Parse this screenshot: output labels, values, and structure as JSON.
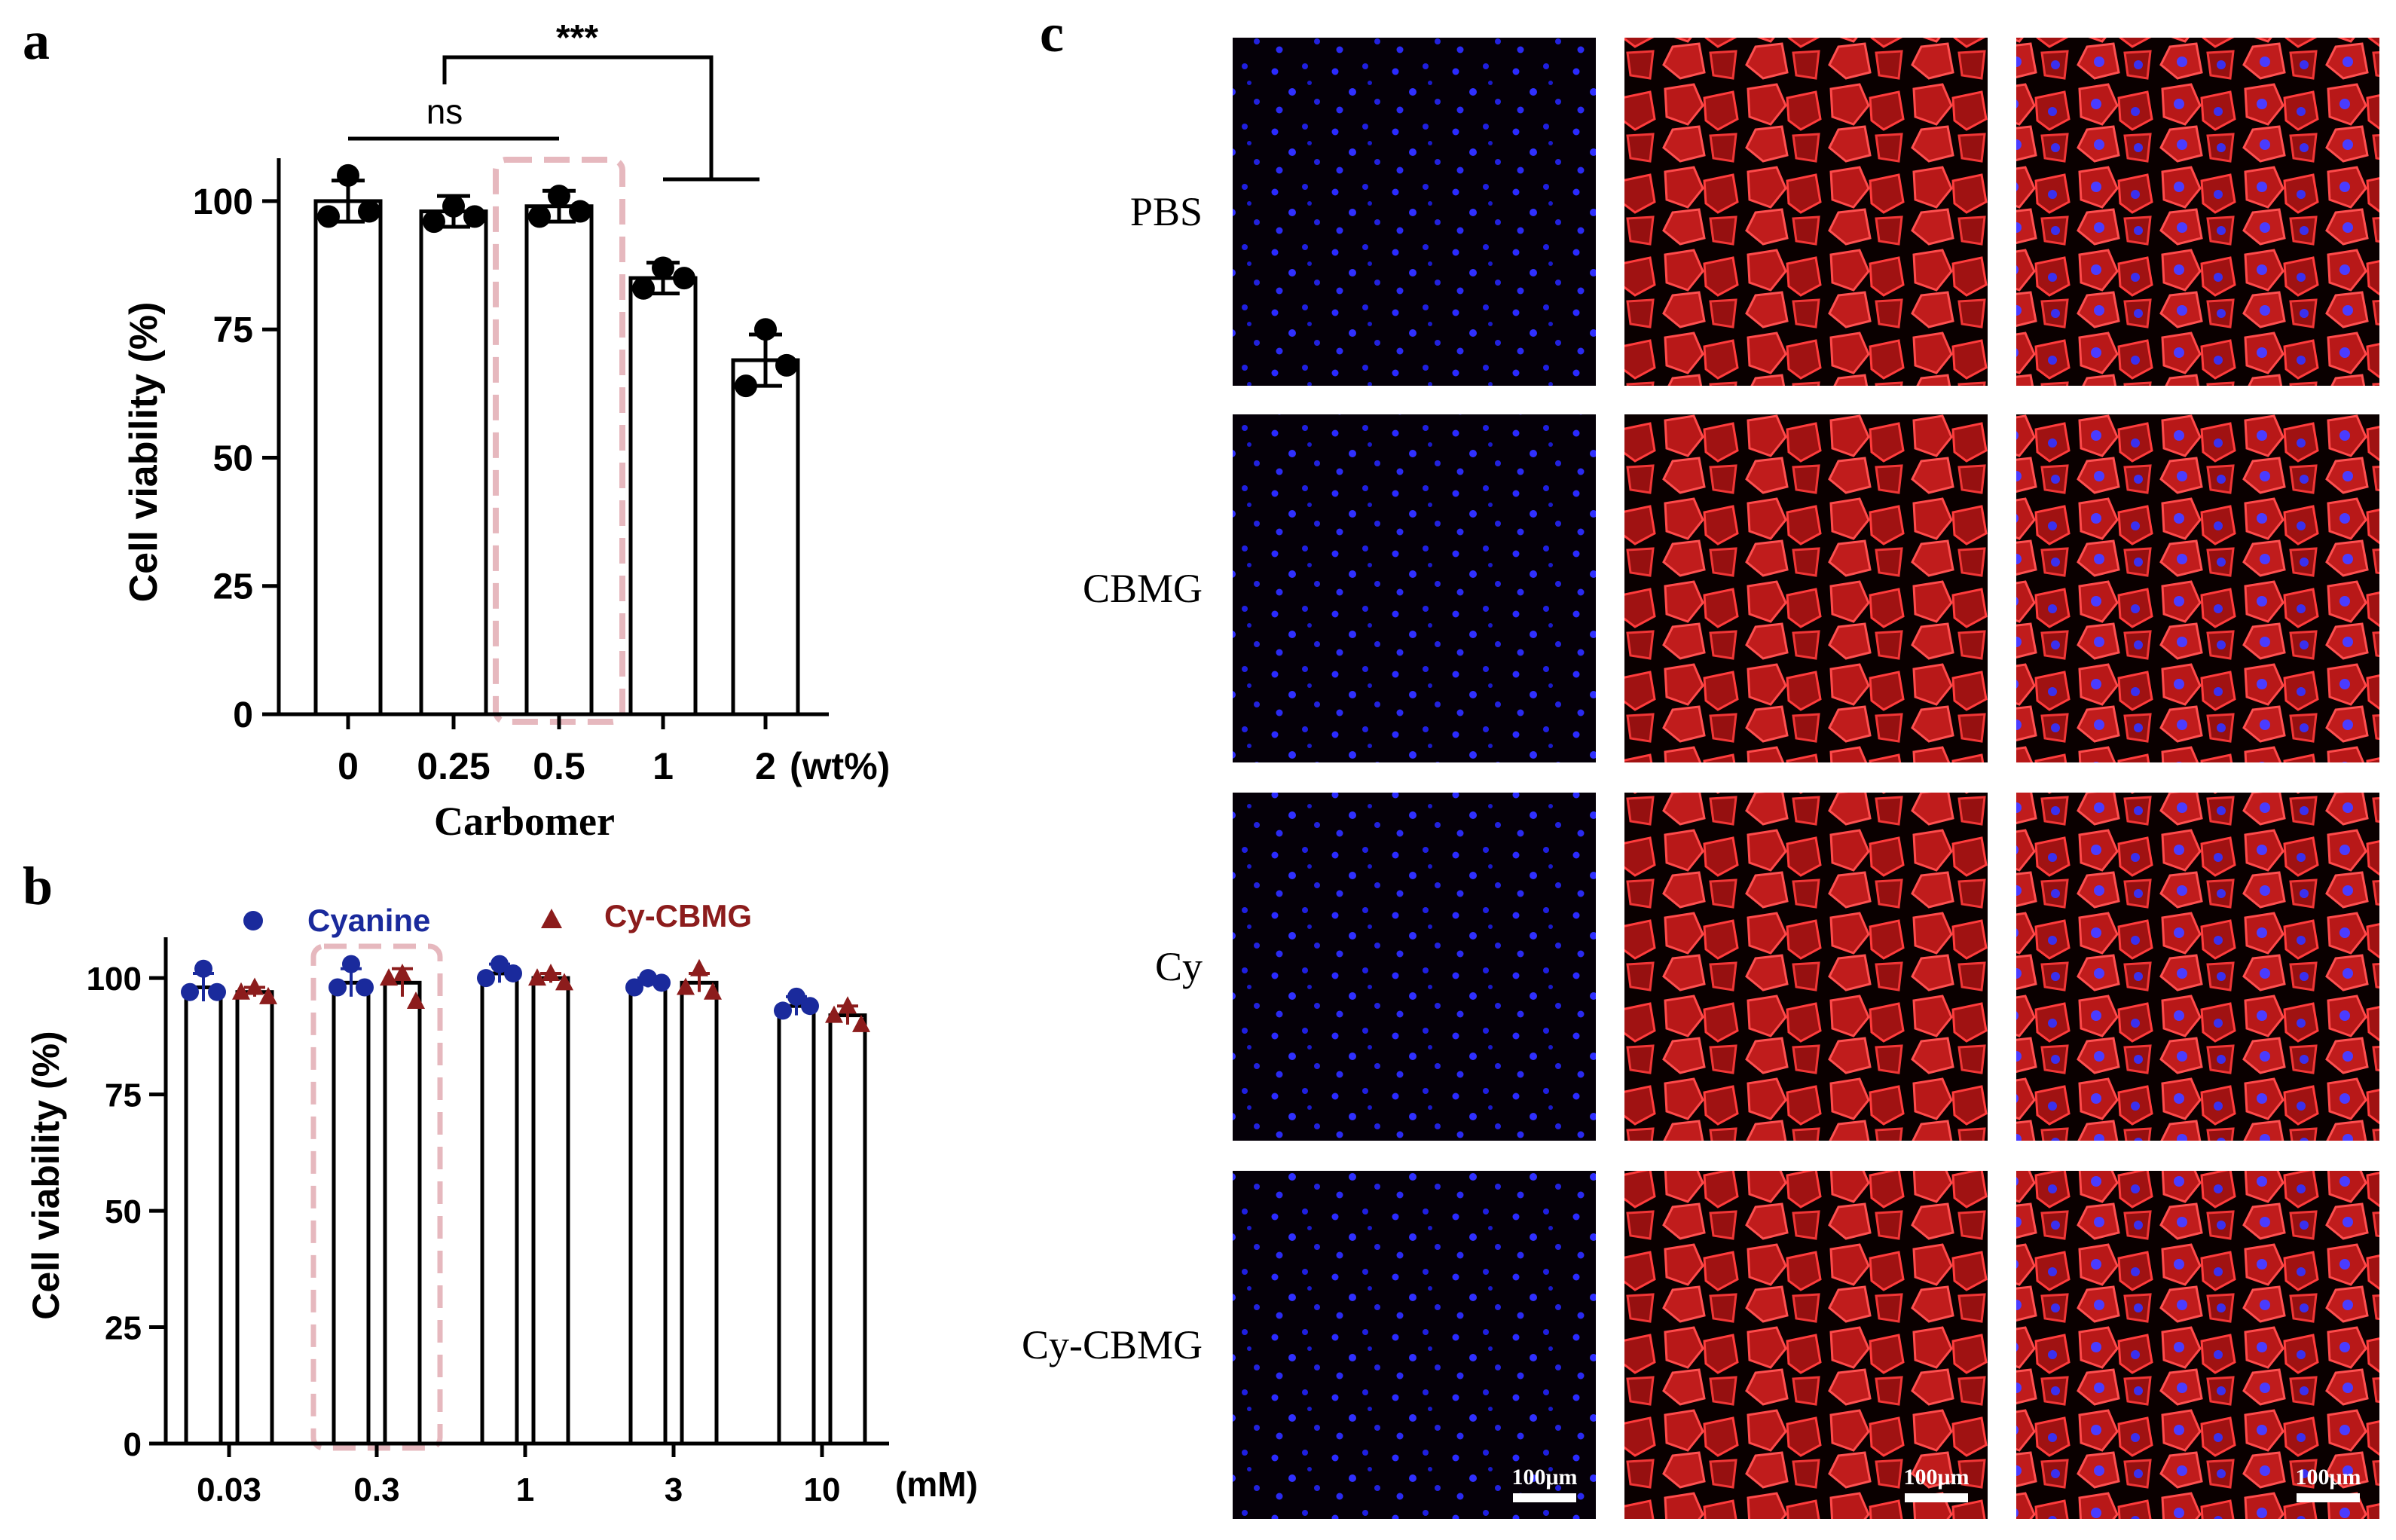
{
  "panels": {
    "a": "a",
    "b": "b",
    "c": "c"
  },
  "chart_data": [
    {
      "id": "a",
      "type": "bar",
      "categories": [
        "0",
        "0.25",
        "0.5",
        "1",
        "2"
      ],
      "unit": "(wt%)",
      "values": [
        100,
        98,
        99,
        85,
        69
      ],
      "errors": [
        4,
        3,
        3,
        3,
        5
      ],
      "points": [
        [
          105,
          97,
          98
        ],
        [
          99,
          96,
          97
        ],
        [
          101,
          97,
          98
        ],
        [
          87,
          83,
          85
        ],
        [
          75,
          64,
          68
        ]
      ],
      "xlabel": "Carbomer",
      "ylabel": "Cell viability (%)",
      "ylim": [
        0,
        105
      ],
      "yticks": [
        0,
        25,
        50,
        75,
        100
      ],
      "highlight_category": "0.5",
      "annotations": [
        {
          "text": "ns",
          "from": "0",
          "to": "0.5"
        },
        {
          "text": "***",
          "from": "0.25",
          "to": "1-2"
        }
      ]
    },
    {
      "id": "b",
      "type": "bar",
      "categories": [
        "0.03",
        "0.3",
        "1",
        "3",
        "10"
      ],
      "unit": "(mM)",
      "series": [
        {
          "name": "Cyanine",
          "color": "#1a2a9c",
          "values": [
            98,
            99,
            101,
            99,
            94
          ],
          "errors": [
            3,
            3,
            2,
            1,
            2
          ],
          "points": [
            [
              102,
              97,
              97
            ],
            [
              103,
              98,
              98
            ],
            [
              103,
              100,
              101
            ],
            [
              100,
              98,
              99
            ],
            [
              96,
              93,
              94
            ]
          ]
        },
        {
          "name": "Cy-CBMG",
          "color": "#8c1c1c",
          "values": [
            97,
            99,
            100,
            99,
            92
          ],
          "errors": [
            1,
            3,
            1,
            2,
            2
          ],
          "points": [
            [
              98,
              97,
              96
            ],
            [
              101,
              100,
              95
            ],
            [
              101,
              100,
              99
            ],
            [
              102,
              98,
              97
            ],
            [
              94,
              92,
              90
            ]
          ]
        }
      ],
      "ylabel": "Cell viability (%)",
      "ylim": [
        0,
        105
      ],
      "yticks": [
        0,
        25,
        50,
        75,
        100
      ],
      "highlight_category": "0.3",
      "legend_placement": "top"
    }
  ],
  "micrographs": {
    "rows": [
      "PBS",
      "CBMG",
      "Cy",
      "Cy-CBMG"
    ],
    "columns": [
      "nucleus-blue",
      "cytoskeleton-red",
      "merge"
    ],
    "scale_bar": "100μm",
    "colors": {
      "nucleus": "#2a2aff",
      "actin": "#d41e1e",
      "background": "#050005"
    }
  }
}
